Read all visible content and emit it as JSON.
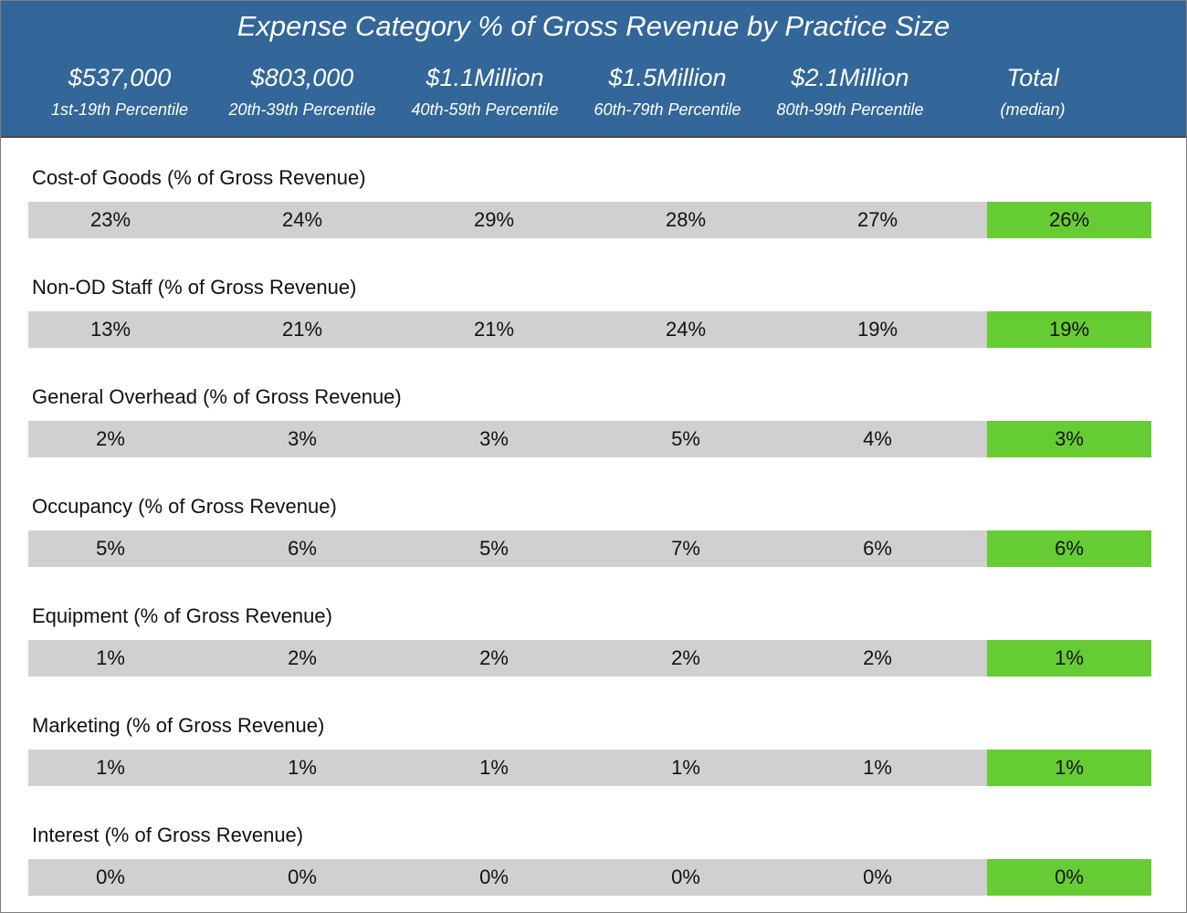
{
  "chart_data": {
    "type": "table",
    "title": "Expense Category % of Gross Revenue by Practice Size",
    "columns": [
      {
        "revenue": "$537,000",
        "percentile": "1st-19th Percentile"
      },
      {
        "revenue": "$803,000",
        "percentile": "20th-39th Percentile"
      },
      {
        "revenue": "$1.1Million",
        "percentile": "40th-59th Percentile"
      },
      {
        "revenue": "$1.5Million",
        "percentile": "60th-79th Percentile"
      },
      {
        "revenue": "$2.1Million",
        "percentile": "80th-99th Percentile"
      },
      {
        "revenue": "Total",
        "percentile": "(median)"
      }
    ],
    "rows": [
      {
        "label": "Cost-of Goods (% of Gross Revenue)",
        "values": [
          "23%",
          "24%",
          "29%",
          "28%",
          "27%",
          "26%"
        ]
      },
      {
        "label": "Non-OD Staff (% of Gross Revenue)",
        "values": [
          "13%",
          "21%",
          "21%",
          "24%",
          "19%",
          "19%"
        ]
      },
      {
        "label": "General Overhead (% of Gross Revenue)",
        "values": [
          "2%",
          "3%",
          "3%",
          "5%",
          "4%",
          "3%"
        ]
      },
      {
        "label": "Occupancy (% of Gross Revenue)",
        "values": [
          "5%",
          "6%",
          "5%",
          "7%",
          "6%",
          "6%"
        ]
      },
      {
        "label": "Equipment (% of Gross Revenue)",
        "values": [
          "1%",
          "2%",
          "2%",
          "2%",
          "2%",
          "1%"
        ]
      },
      {
        "label": "Marketing (% of Gross Revenue)",
        "values": [
          "1%",
          "1%",
          "1%",
          "1%",
          "1%",
          "1%"
        ]
      },
      {
        "label": "Interest (% of Gross Revenue)",
        "values": [
          "0%",
          "0%",
          "0%",
          "0%",
          "0%",
          "0%"
        ]
      }
    ],
    "colors": {
      "header_bg": "#336699",
      "row_bg": "#d0d0d0",
      "total_bg": "#66cc33"
    }
  }
}
